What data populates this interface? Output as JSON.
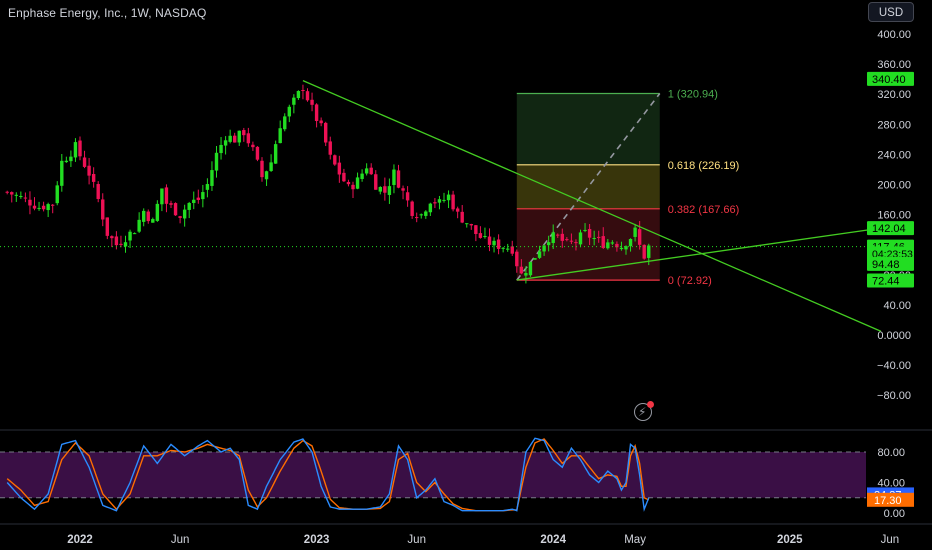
{
  "header": {
    "symbol_title": "Enphase Energy, Inc., 1W, NASDAQ",
    "currency": "USD"
  },
  "colors": {
    "up": "#22dd22",
    "down": "#ee1155",
    "trendline": "#44cc22",
    "k_line": "#2b8cff",
    "d_line": "#ff6d00",
    "osc_band": "#3a0f45"
  },
  "chart_data": [
    {
      "type": "candlestick",
      "title": "Enphase Energy, Inc., 1W, NASDAQ",
      "ylim": [
        -100,
        410
      ],
      "y_ticks": [
        400,
        360,
        320,
        280,
        240,
        200,
        160,
        120,
        80,
        40,
        0,
        -40,
        -80
      ],
      "y_tick_labels": [
        "400.00",
        "360.00",
        "320.00",
        "280.00",
        "240.00",
        "200.00",
        "160.00",
        "120.00",
        "80.00",
        "40.00",
        "0.0000",
        "−40.00",
        "−80.00"
      ],
      "x_tick_labels": [
        "2022",
        "Jun",
        "2023",
        "Jun",
        "2024",
        "May",
        "2025",
        "Jun"
      ],
      "x_tick_weeks": [
        0,
        22,
        52,
        74,
        104,
        122,
        156,
        178
      ],
      "total_weeks": 186,
      "start_week": -16,
      "close_anchors": [
        [
          -16,
          190
        ],
        [
          -12,
          180
        ],
        [
          -9,
          170
        ],
        [
          -6,
          175
        ],
        [
          -4,
          230
        ],
        [
          -1,
          250
        ],
        [
          2,
          215
        ],
        [
          4,
          180
        ],
        [
          6,
          135
        ],
        [
          8,
          120
        ],
        [
          10,
          130
        ],
        [
          12,
          140
        ],
        [
          14,
          165
        ],
        [
          16,
          150
        ],
        [
          18,
          195
        ],
        [
          19,
          175
        ],
        [
          22,
          160
        ],
        [
          24,
          175
        ],
        [
          26,
          180
        ],
        [
          28,
          200
        ],
        [
          30,
          240
        ],
        [
          32,
          265
        ],
        [
          34,
          260
        ],
        [
          36,
          270
        ],
        [
          38,
          245
        ],
        [
          40,
          210
        ],
        [
          42,
          230
        ],
        [
          44,
          280
        ],
        [
          46,
          300
        ],
        [
          48,
          320
        ],
        [
          49,
          330
        ],
        [
          51,
          300
        ],
        [
          53,
          275
        ],
        [
          55,
          235
        ],
        [
          57,
          215
        ],
        [
          59,
          195
        ],
        [
          61,
          205
        ],
        [
          63,
          225
        ],
        [
          65,
          200
        ],
        [
          67,
          190
        ],
        [
          69,
          215
        ],
        [
          71,
          190
        ],
        [
          73,
          165
        ],
        [
          75,
          160
        ],
        [
          77,
          180
        ],
        [
          79,
          175
        ],
        [
          81,
          185
        ],
        [
          83,
          160
        ],
        [
          85,
          150
        ],
        [
          87,
          135
        ],
        [
          89,
          125
        ],
        [
          91,
          120
        ],
        [
          93,
          118
        ],
        [
          95,
          115
        ],
        [
          96,
          95
        ],
        [
          97,
          80
        ],
        [
          99,
          95
        ],
        [
          101,
          115
        ],
        [
          103,
          130
        ],
        [
          105,
          130
        ],
        [
          107,
          120
        ],
        [
          109,
          125
        ],
        [
          111,
          135
        ],
        [
          113,
          128
        ],
        [
          115,
          122
        ],
        [
          117,
          125
        ],
        [
          119,
          118
        ],
        [
          121,
          130
        ],
        [
          122,
          138
        ],
        [
          123,
          118
        ],
        [
          124,
          105
        ],
        [
          125,
          117
        ]
      ],
      "fib_levels": [
        {
          "level": "1",
          "value": 320.94,
          "label": "1 (320.94)"
        },
        {
          "level": "0.618",
          "value": 226.19,
          "label": "0.618 (226.19)"
        },
        {
          "level": "0.382",
          "value": 167.66,
          "label": "0.382 (167.66)"
        },
        {
          "level": "0",
          "value": 72.92,
          "label": "0 (72.92)"
        }
      ],
      "fib_week_range": [
        96,
        125
      ],
      "trendlines": [
        {
          "from": [
            49,
            338
          ],
          "to": [
            176,
            5
          ]
        },
        {
          "from": [
            96,
            73
          ],
          "to": [
            176,
            142
          ]
        }
      ],
      "price_labels": [
        {
          "text": "340.40",
          "value": 340.4
        },
        {
          "text": "142.04",
          "value": 142.04
        },
        {
          "text": "117.46",
          "value": 117.46
        },
        {
          "text": "04:23:53",
          "value": 108.5
        },
        {
          "text": "94.48",
          "value": 94.48
        },
        {
          "text": "72.44",
          "value": 72.44
        }
      ],
      "current_price": 117.46
    },
    {
      "type": "line",
      "name_hint": "stochastic oscillator",
      "ylim": [
        0,
        100
      ],
      "y_ticks": [
        80,
        40,
        0
      ],
      "y_tick_labels": [
        "80.00",
        "40.00",
        "0.00"
      ],
      "band": [
        20,
        80
      ],
      "k_anchors": [
        [
          -16,
          40
        ],
        [
          -13,
          20
        ],
        [
          -10,
          5
        ],
        [
          -7,
          25
        ],
        [
          -4,
          90
        ],
        [
          -1,
          95
        ],
        [
          2,
          60
        ],
        [
          5,
          10
        ],
        [
          8,
          3
        ],
        [
          11,
          40
        ],
        [
          14,
          88
        ],
        [
          17,
          65
        ],
        [
          20,
          90
        ],
        [
          23,
          75
        ],
        [
          26,
          88
        ],
        [
          28,
          95
        ],
        [
          31,
          80
        ],
        [
          33,
          85
        ],
        [
          35,
          70
        ],
        [
          37,
          10
        ],
        [
          39,
          5
        ],
        [
          41,
          35
        ],
        [
          44,
          70
        ],
        [
          47,
          93
        ],
        [
          49,
          97
        ],
        [
          51,
          80
        ],
        [
          53,
          35
        ],
        [
          55,
          8
        ],
        [
          57,
          5
        ],
        [
          60,
          5
        ],
        [
          63,
          5
        ],
        [
          66,
          8
        ],
        [
          68,
          25
        ],
        [
          70,
          88
        ],
        [
          72,
          70
        ],
        [
          74,
          20
        ],
        [
          76,
          30
        ],
        [
          78,
          45
        ],
        [
          80,
          15
        ],
        [
          82,
          10
        ],
        [
          84,
          3
        ],
        [
          87,
          3
        ],
        [
          90,
          3
        ],
        [
          93,
          3
        ],
        [
          95,
          5
        ],
        [
          96,
          3
        ],
        [
          98,
          80
        ],
        [
          100,
          98
        ],
        [
          102,
          95
        ],
        [
          104,
          70
        ],
        [
          106,
          60
        ],
        [
          108,
          85
        ],
        [
          110,
          70
        ],
        [
          112,
          50
        ],
        [
          114,
          40
        ],
        [
          116,
          55
        ],
        [
          118,
          45
        ],
        [
          119,
          30
        ],
        [
          120,
          40
        ],
        [
          121,
          90
        ],
        [
          122,
          85
        ],
        [
          123,
          50
        ],
        [
          124,
          5
        ],
        [
          125,
          20
        ]
      ],
      "d_anchors": [
        [
          -16,
          45
        ],
        [
          -13,
          30
        ],
        [
          -10,
          10
        ],
        [
          -7,
          15
        ],
        [
          -4,
          70
        ],
        [
          -1,
          92
        ],
        [
          2,
          75
        ],
        [
          5,
          25
        ],
        [
          8,
          5
        ],
        [
          11,
          25
        ],
        [
          14,
          75
        ],
        [
          17,
          75
        ],
        [
          20,
          82
        ],
        [
          23,
          80
        ],
        [
          26,
          85
        ],
        [
          28,
          90
        ],
        [
          31,
          85
        ],
        [
          33,
          82
        ],
        [
          35,
          75
        ],
        [
          37,
          30
        ],
        [
          39,
          8
        ],
        [
          41,
          20
        ],
        [
          44,
          55
        ],
        [
          47,
          85
        ],
        [
          49,
          95
        ],
        [
          51,
          88
        ],
        [
          53,
          55
        ],
        [
          55,
          18
        ],
        [
          57,
          7
        ],
        [
          60,
          5
        ],
        [
          63,
          5
        ],
        [
          66,
          6
        ],
        [
          68,
          15
        ],
        [
          70,
          70
        ],
        [
          72,
          78
        ],
        [
          74,
          40
        ],
        [
          76,
          28
        ],
        [
          78,
          40
        ],
        [
          80,
          25
        ],
        [
          82,
          12
        ],
        [
          84,
          6
        ],
        [
          87,
          3
        ],
        [
          90,
          3
        ],
        [
          93,
          3
        ],
        [
          95,
          4
        ],
        [
          96,
          4
        ],
        [
          98,
          60
        ],
        [
          100,
          92
        ],
        [
          102,
          97
        ],
        [
          104,
          82
        ],
        [
          106,
          65
        ],
        [
          108,
          75
        ],
        [
          110,
          75
        ],
        [
          112,
          60
        ],
        [
          114,
          45
        ],
        [
          116,
          50
        ],
        [
          118,
          48
        ],
        [
          119,
          35
        ],
        [
          120,
          35
        ],
        [
          121,
          75
        ],
        [
          122,
          88
        ],
        [
          123,
          65
        ],
        [
          124,
          20
        ],
        [
          125,
          17
        ]
      ],
      "value_labels": [
        {
          "text": "24.37",
          "value": 24.37,
          "color": "#2962ff"
        },
        {
          "text": "17.30",
          "value": 17.3,
          "color": "#ff6d00"
        }
      ]
    }
  ]
}
